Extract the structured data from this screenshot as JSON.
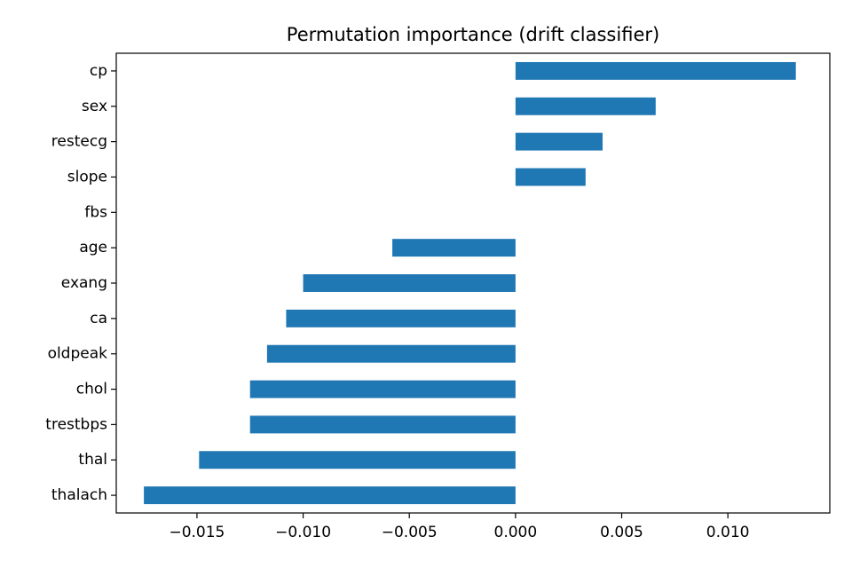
{
  "chart_data": {
    "type": "bar",
    "orientation": "horizontal",
    "title": "Permutation importance (drift classifier)",
    "xlabel": "",
    "ylabel": "",
    "categories": [
      "cp",
      "sex",
      "restecg",
      "slope",
      "fbs",
      "age",
      "exang",
      "ca",
      "oldpeak",
      "chol",
      "trestbps",
      "thal",
      "thalach"
    ],
    "values": [
      0.0132,
      0.0066,
      0.0041,
      0.0033,
      0.0,
      -0.0058,
      -0.01,
      -0.0108,
      -0.0117,
      -0.0125,
      -0.0125,
      -0.0149,
      -0.0175
    ],
    "xlim": [
      -0.0188,
      0.0148
    ],
    "xticks": [
      -0.015,
      -0.01,
      -0.005,
      0.0,
      0.005,
      0.01
    ],
    "xtick_labels": [
      "−0.015",
      "−0.010",
      "−0.005",
      "0.000",
      "0.005",
      "0.010"
    ],
    "bar_color": "#1f77b4",
    "grid": false,
    "legend": "none"
  }
}
